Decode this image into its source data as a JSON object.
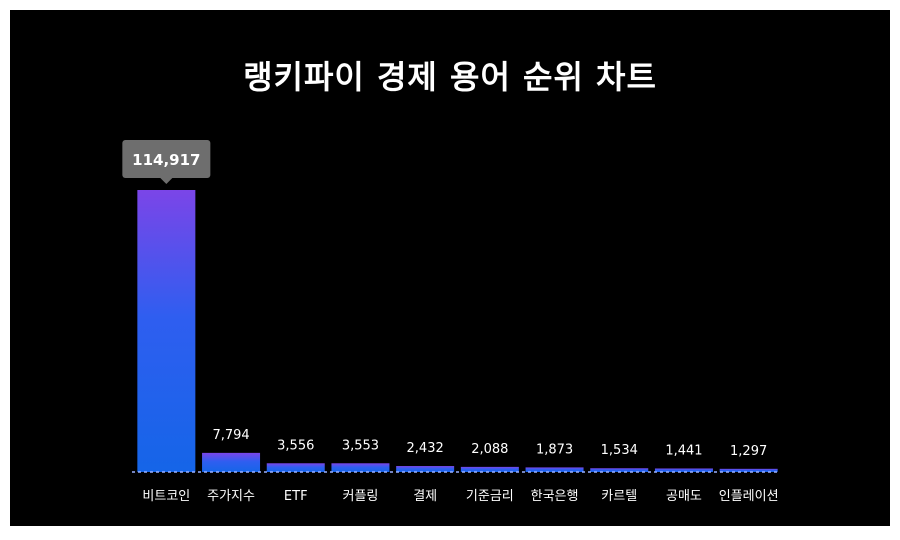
{
  "chart_data": {
    "type": "bar",
    "title": "랭키파이 경제 용어 순위 차트",
    "categories": [
      "비트코인",
      "주가지수",
      "ETF",
      "커플링",
      "결제",
      "기준금리",
      "한국은행",
      "카르텔",
      "공매도",
      "인플레이션"
    ],
    "values": [
      114917,
      7794,
      3556,
      3553,
      2432,
      2088,
      1873,
      1534,
      1441,
      1297
    ],
    "value_labels": [
      "114,917",
      "7,794",
      "3,556",
      "3,553",
      "2,432",
      "2,088",
      "1,873",
      "1,534",
      "1,441",
      "1,297"
    ],
    "highlight_index": 0,
    "ylim": [
      0,
      114917
    ],
    "grid": false,
    "colors": {
      "background": "#000000",
      "bar_bottom": "#1565e8",
      "bar_top": "#7b45e8",
      "tooltip": "#6e6e6e",
      "text": "#ffffff",
      "baseline": "#9ab0ff"
    }
  }
}
